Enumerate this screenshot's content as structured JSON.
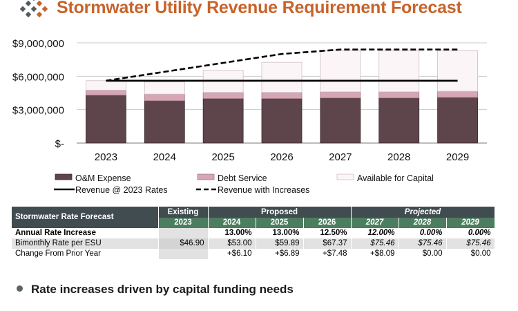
{
  "title": "Stormwater Utility Revenue Requirement Forecast",
  "colors": {
    "title": "#c8632a",
    "om": "#5e444b",
    "debt": "#d6a6b6",
    "capital": "#fcf5f7",
    "table_header": "#404c50",
    "table_subheader": "#4d7d5f"
  },
  "chart_data": {
    "type": "bar",
    "stacked": true,
    "categories": [
      "2023",
      "2024",
      "2025",
      "2026",
      "2027",
      "2028",
      "2029"
    ],
    "ylim": [
      0,
      9000000
    ],
    "yticks": [
      {
        "value": 0,
        "label": "$-"
      },
      {
        "value": 3000000,
        "label": "$3,000,000"
      },
      {
        "value": 6000000,
        "label": "$6,000,000"
      },
      {
        "value": 9000000,
        "label": "$9,000,000"
      }
    ],
    "grid": true,
    "legend_position": "bottom",
    "series": [
      {
        "name": "O&M Expense",
        "kind": "bar",
        "values": [
          4300000,
          3800000,
          4000000,
          4000000,
          4050000,
          4050000,
          4100000
        ]
      },
      {
        "name": "Debt Service",
        "kind": "bar",
        "values": [
          450000,
          600000,
          550000,
          550000,
          550000,
          550000,
          550000
        ]
      },
      {
        "name": "Available for Capital",
        "kind": "bar",
        "values": [
          850000,
          1100000,
          2000000,
          2700000,
          3700000,
          3700000,
          3650000
        ]
      },
      {
        "name": "Revenue @ 2023 Rates",
        "kind": "line",
        "style": "solid",
        "values": [
          5600000,
          5600000,
          5600000,
          5600000,
          5600000,
          5600000,
          5600000
        ]
      },
      {
        "name": "Revenue with Increases",
        "kind": "line",
        "style": "dashed",
        "values": [
          5600000,
          6400000,
          7200000,
          8000000,
          8400000,
          8400000,
          8400000
        ]
      }
    ]
  },
  "table": {
    "label": "Stormwater Rate Forecast",
    "groups": [
      {
        "label": "Existing",
        "italic": false
      },
      {
        "label": "Proposed",
        "italic": false
      },
      {
        "label": "Projected",
        "italic": true
      }
    ],
    "years": [
      "2023",
      "2024",
      "2025",
      "2026",
      "2027",
      "2028",
      "2029"
    ],
    "rows": [
      {
        "label": "Annual Rate Increase",
        "cells": [
          "",
          "13.00%",
          "13.00%",
          "12.50%",
          "12.00%",
          "0.00%",
          "0.00%"
        ]
      },
      {
        "label": "Bimonthly Rate per ESU",
        "cells": [
          "$46.90",
          "$53.00",
          "$59.89",
          "$67.37",
          "$75.46",
          "$75.46",
          "$75.46"
        ]
      },
      {
        "label": "Change From Prior Year",
        "cells": [
          "",
          "+$6.10",
          "+$6.89",
          "+$7.48",
          "+$8.09",
          "$0.00",
          "$0.00"
        ]
      }
    ]
  },
  "bullet": "Rate increases driven by capital funding needs"
}
